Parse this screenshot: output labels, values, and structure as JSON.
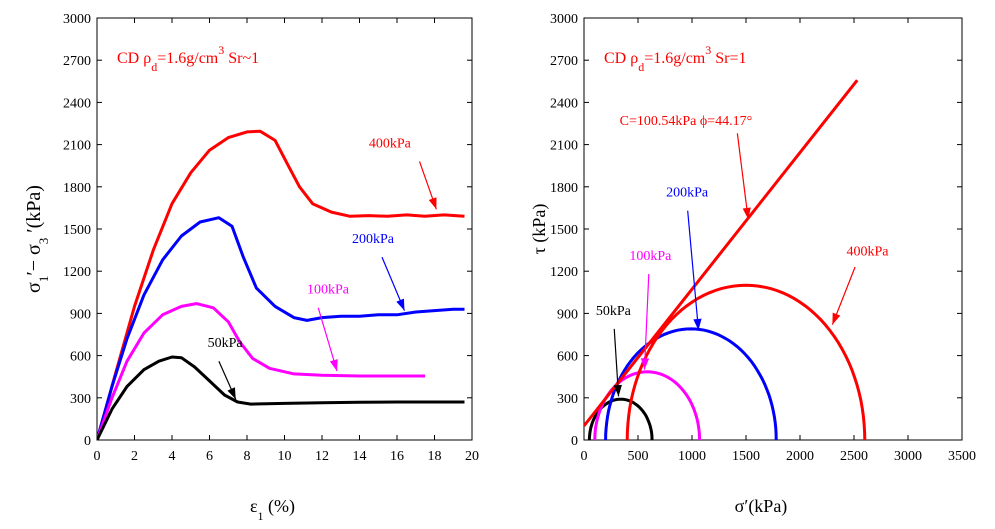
{
  "chart_data": [
    {
      "type": "line",
      "title": "",
      "annotation": {
        "prefix": "CD ",
        "rho": "ρ",
        "rho_sub": "d",
        "mid": "=1.6g/cm",
        "exp": "3",
        "suffix": " Sr~1",
        "color": "#ff0000"
      },
      "xlabel": {
        "sym": "ε",
        "sub": "1",
        "rest": " (%)"
      },
      "ylabel": {
        "a": "σ",
        "a_sub": "1",
        "mid": "′− σ",
        "b_sub": "3",
        "rest": " ′(kPa)"
      },
      "xlim": [
        0,
        20
      ],
      "ylim": [
        0,
        3000
      ],
      "x_ticks": [
        0,
        2,
        4,
        6,
        8,
        10,
        12,
        14,
        16,
        18,
        20
      ],
      "y_ticks": [
        0,
        300,
        600,
        900,
        1200,
        1500,
        1800,
        2100,
        2400,
        2700,
        3000
      ],
      "grid": false,
      "series": [
        {
          "name": "400kPa",
          "color": "#ff0000",
          "points": [
            [
              0,
              0
            ],
            [
              1,
              480
            ],
            [
              2,
              950
            ],
            [
              3,
              1350
            ],
            [
              4,
              1680
            ],
            [
              5,
              1900
            ],
            [
              6,
              2060
            ],
            [
              7,
              2150
            ],
            [
              8,
              2190
            ],
            [
              8.7,
              2195
            ],
            [
              9.5,
              2130
            ],
            [
              10.2,
              1950
            ],
            [
              10.8,
              1800
            ],
            [
              11.5,
              1680
            ],
            [
              12.5,
              1620
            ],
            [
              13.5,
              1590
            ],
            [
              14.5,
              1595
            ],
            [
              15.5,
              1590
            ],
            [
              16.5,
              1600
            ],
            [
              17.5,
              1590
            ],
            [
              18.5,
              1600
            ],
            [
              19.6,
              1590
            ]
          ]
        },
        {
          "name": "200kPa",
          "color": "#0000ff",
          "points": [
            [
              0,
              0
            ],
            [
              0.8,
              380
            ],
            [
              1.6,
              720
            ],
            [
              2.5,
              1030
            ],
            [
              3.5,
              1280
            ],
            [
              4.5,
              1450
            ],
            [
              5.5,
              1550
            ],
            [
              6.5,
              1580
            ],
            [
              7.2,
              1520
            ],
            [
              7.8,
              1300
            ],
            [
              8.5,
              1080
            ],
            [
              9.5,
              950
            ],
            [
              10.5,
              870
            ],
            [
              11.2,
              850
            ],
            [
              12,
              870
            ],
            [
              13,
              880
            ],
            [
              14,
              880
            ],
            [
              15,
              890
            ],
            [
              16,
              890
            ],
            [
              17,
              910
            ],
            [
              18,
              920
            ],
            [
              19,
              930
            ],
            [
              19.6,
              930
            ]
          ]
        },
        {
          "name": "100kPa",
          "color": "#ff00ff",
          "points": [
            [
              0,
              0
            ],
            [
              0.8,
              300
            ],
            [
              1.6,
              560
            ],
            [
              2.5,
              760
            ],
            [
              3.5,
              890
            ],
            [
              4.5,
              950
            ],
            [
              5.3,
              970
            ],
            [
              6.2,
              940
            ],
            [
              7,
              840
            ],
            [
              7.6,
              700
            ],
            [
              8.3,
              580
            ],
            [
              9.2,
              510
            ],
            [
              10.5,
              470
            ],
            [
              12,
              460
            ],
            [
              14,
              455
            ],
            [
              16,
              455
            ],
            [
              17.5,
              455
            ]
          ]
        },
        {
          "name": "50kPa",
          "color": "#000000",
          "points": [
            [
              0,
              0
            ],
            [
              0.8,
              220
            ],
            [
              1.6,
              380
            ],
            [
              2.5,
              500
            ],
            [
              3.3,
              560
            ],
            [
              4,
              590
            ],
            [
              4.5,
              585
            ],
            [
              5.2,
              520
            ],
            [
              6,
              420
            ],
            [
              6.8,
              320
            ],
            [
              7.5,
              270
            ],
            [
              8.2,
              255
            ],
            [
              10,
              260
            ],
            [
              12,
              265
            ],
            [
              14,
              268
            ],
            [
              16,
              270
            ],
            [
              18,
              270
            ],
            [
              19.6,
              270
            ]
          ]
        }
      ],
      "labels": [
        {
          "text": "400kPa",
          "color": "#ff0000",
          "at": [
            14.5,
            2080
          ],
          "arrow_from": [
            17.2,
            1980
          ],
          "arrow_to": [
            18.1,
            1640
          ]
        },
        {
          "text": "200kPa",
          "color": "#0000ff",
          "at": [
            13.6,
            1400
          ],
          "arrow_from": [
            15.2,
            1300
          ],
          "arrow_to": [
            16.4,
            920
          ]
        },
        {
          "text": "100kPa",
          "color": "#ff00ff",
          "at": [
            11.2,
            1040
          ],
          "arrow_from": [
            11.8,
            940
          ],
          "arrow_to": [
            12.8,
            490
          ]
        },
        {
          "text": "50kPa",
          "color": "#000000",
          "at": [
            5.9,
            660
          ],
          "arrow_from": [
            6.5,
            560
          ],
          "arrow_to": [
            7.4,
            290
          ]
        }
      ]
    },
    {
      "type": "line",
      "title": "",
      "annotation": {
        "prefix": "CD ",
        "rho": "ρ",
        "rho_sub": "d",
        "mid": "=1.6g/cm",
        "exp": "3",
        "suffix": " Sr=1",
        "color": "#ff0000"
      },
      "xlabel": {
        "text": "σ′(kPa)"
      },
      "ylabel": {
        "text": "τ (kPa)"
      },
      "xlim": [
        0,
        3500
      ],
      "ylim": [
        0,
        3000
      ],
      "x_ticks": [
        0,
        500,
        1000,
        1500,
        2000,
        2500,
        3000,
        3500
      ],
      "y_ticks": [
        0,
        300,
        600,
        900,
        1200,
        1500,
        1800,
        2100,
        2400,
        2700,
        3000
      ],
      "grid": false,
      "envelope": {
        "c": 100.54,
        "phi_deg": 44.17,
        "x_range": [
          0,
          2530
        ],
        "color": "#ff0000"
      },
      "circles": [
        {
          "name": "50kPa",
          "sigma3": 50,
          "sigma1": 630,
          "color": "#000000"
        },
        {
          "name": "100kPa",
          "sigma3": 100,
          "sigma1": 1070,
          "color": "#ff00ff"
        },
        {
          "name": "200kPa",
          "sigma3": 200,
          "sigma1": 1780,
          "color": "#0000ff"
        },
        {
          "name": "400kPa",
          "sigma3": 400,
          "sigma1": 2600,
          "color": "#ff0000"
        }
      ],
      "labels": [
        {
          "text": "C=100.54kPa  ϕ=44.17°",
          "color": "#ff0000",
          "at": [
            330,
            2240
          ],
          "arrow_from": [
            1420,
            2180
          ],
          "arrow_to": [
            1520,
            1570
          ]
        },
        {
          "text": "200kPa",
          "color": "#0000ff",
          "at": [
            760,
            1730
          ],
          "arrow_from": [
            960,
            1630
          ],
          "arrow_to": [
            1060,
            780
          ]
        },
        {
          "text": "100kPa",
          "color": "#ff00ff",
          "at": [
            420,
            1280
          ],
          "arrow_from": [
            600,
            1180
          ],
          "arrow_to": [
            560,
            500
          ]
        },
        {
          "text": "50kPa",
          "color": "#000000",
          "at": [
            110,
            890
          ],
          "arrow_from": [
            280,
            790
          ],
          "arrow_to": [
            320,
            310
          ]
        },
        {
          "text": "400kPa",
          "color": "#ff0000",
          "at": [
            2430,
            1310
          ],
          "arrow_from": [
            2510,
            1230
          ],
          "arrow_to": [
            2300,
            820
          ]
        }
      ]
    }
  ]
}
